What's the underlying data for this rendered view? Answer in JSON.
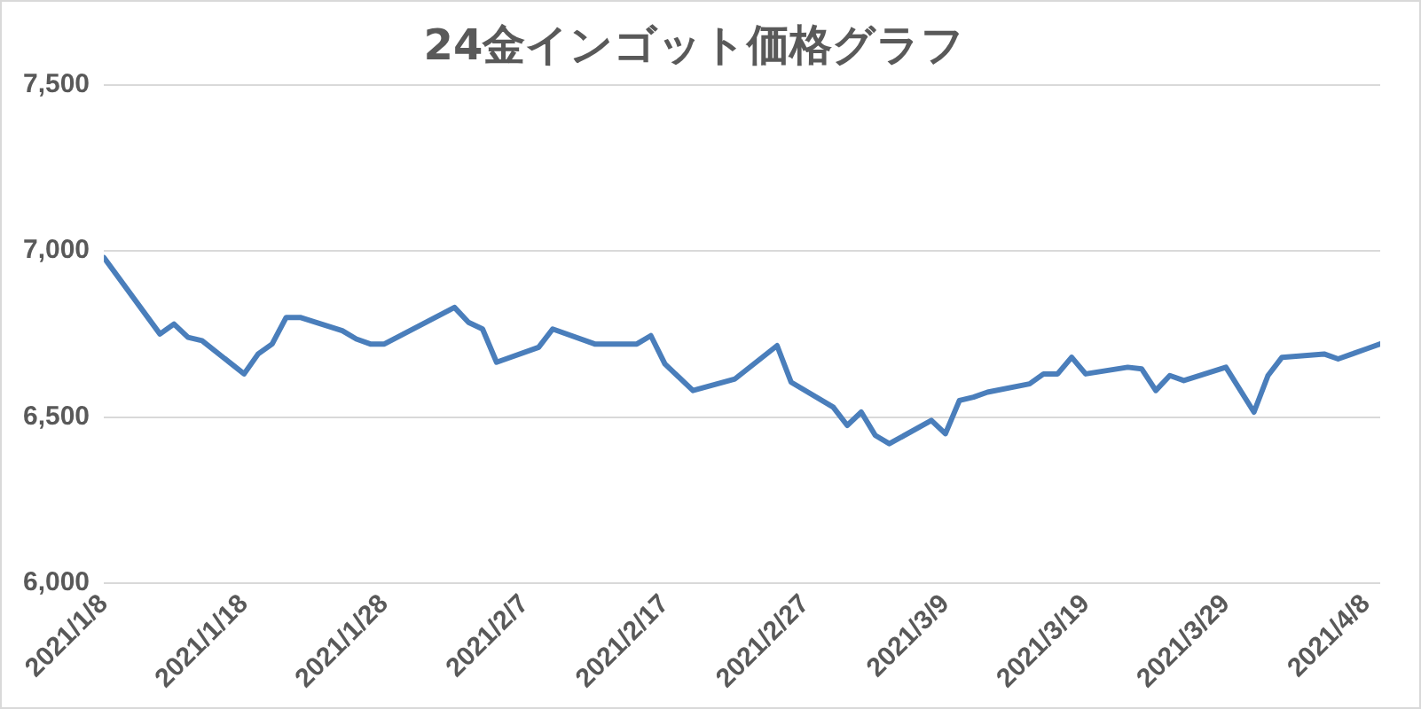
{
  "chart_data": {
    "type": "line",
    "title": "24金インゴット価格グラフ",
    "x": [
      "2021-01-08",
      "2021-01-12",
      "2021-01-13",
      "2021-01-14",
      "2021-01-15",
      "2021-01-18",
      "2021-01-19",
      "2021-01-20",
      "2021-01-21",
      "2021-01-22",
      "2021-01-25",
      "2021-01-26",
      "2021-01-27",
      "2021-01-28",
      "2021-02-02",
      "2021-02-03",
      "2021-02-04",
      "2021-02-05",
      "2021-02-08",
      "2021-02-09",
      "2021-02-12",
      "2021-02-15",
      "2021-02-16",
      "2021-02-17",
      "2021-02-19",
      "2021-02-22",
      "2021-02-25",
      "2021-02-26",
      "2021-03-01",
      "2021-03-02",
      "2021-03-03",
      "2021-03-04",
      "2021-03-05",
      "2021-03-08",
      "2021-03-09",
      "2021-03-10",
      "2021-03-11",
      "2021-03-12",
      "2021-03-15",
      "2021-03-16",
      "2021-03-17",
      "2021-03-18",
      "2021-03-19",
      "2021-03-22",
      "2021-03-23",
      "2021-03-24",
      "2021-03-25",
      "2021-03-26",
      "2021-03-29",
      "2021-03-31",
      "2021-04-01",
      "2021-04-02",
      "2021-04-05",
      "2021-04-06",
      "2021-04-07",
      "2021-04-08",
      "2021-04-09"
    ],
    "series": [
      {
        "color": "#4a7ebb",
        "values": [
          6980,
          6750,
          6780,
          6740,
          6730,
          6630,
          6690,
          6720,
          6800,
          6800,
          6760,
          6735,
          6720,
          6720,
          6830,
          6785,
          6765,
          6665,
          6710,
          6765,
          6720,
          6720,
          6745,
          6660,
          6580,
          6615,
          6715,
          6605,
          6530,
          6475,
          6515,
          6445,
          6420,
          6490,
          6450,
          6550,
          6560,
          6575,
          6600,
          6630,
          6630,
          6680,
          6630,
          6650,
          6645,
          6580,
          6625,
          6610,
          6650,
          6515,
          6625,
          6680,
          6690,
          6675,
          6690,
          6705,
          6720
        ]
      }
    ],
    "xlim": [
      "2021-01-08",
      "2021-04-09"
    ],
    "xticks": [
      {
        "value": "2021-01-08",
        "label": "2021/1/8"
      },
      {
        "value": "2021-01-18",
        "label": "2021/1/18"
      },
      {
        "value": "2021-01-28",
        "label": "2021/1/28"
      },
      {
        "value": "2021-02-07",
        "label": "2021/2/7"
      },
      {
        "value": "2021-02-17",
        "label": "2021/2/17"
      },
      {
        "value": "2021-02-27",
        "label": "2021/2/27"
      },
      {
        "value": "2021-03-09",
        "label": "2021/3/9"
      },
      {
        "value": "2021-03-19",
        "label": "2021/3/19"
      },
      {
        "value": "2021-03-29",
        "label": "2021/3/29"
      },
      {
        "value": "2021-04-08",
        "label": "2021/4/8"
      }
    ],
    "ylim": [
      6000,
      7500
    ],
    "yticks": [
      {
        "value": 6000,
        "label": "6,000"
      },
      {
        "value": 6500,
        "label": "6,500"
      },
      {
        "value": 7000,
        "label": "7,000"
      },
      {
        "value": 7500,
        "label": "7,500"
      }
    ],
    "grid": "y",
    "legend": false,
    "marker": "none",
    "line_style": "solid"
  }
}
